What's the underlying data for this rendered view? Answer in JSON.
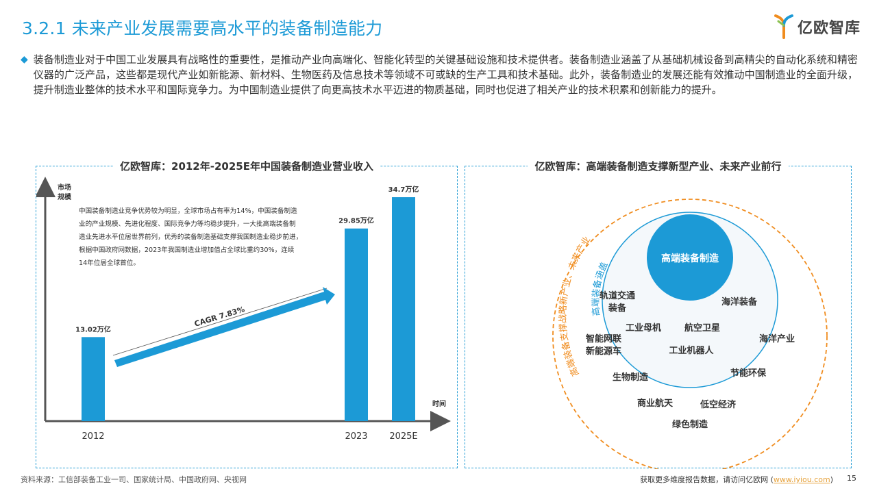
{
  "header": {
    "title": "3.2.1 未来产业发展需要高水平的装备制造能力",
    "logo_text": "亿欧智库"
  },
  "intro": {
    "text": "装备制造业对于中国工业发展具有战略性的重要性，是推动产业向高端化、智能化转型的关键基础设施和技术提供者。装备制造业涵盖了从基础机械设备到高精尖的自动化系统和精密仪器的广泛产品，这些都是现代产业如新能源、新材料、生物医药及信息技术等领域不可或缺的生产工具和技术基础。此外，装备制造业的发展还能有效推动中国制造业的全面升级，提升制造业整体的技术水平和国际竞争力。为中国制造业提供了向更高技术水平迈进的物质基础，同时也促进了相关产业的技术积累和创新能力的提升。"
  },
  "left_panel": {
    "title": "亿欧智库：2012年-2025E年中国装备制造业营业收入",
    "annotation_lines": [
      "中国装备制造业竞争优势较为明显，全球市场占有率为14%，中国装备制造",
      "业的产业规模、先进化程度、国际竞争力等均稳步提升，一大批高端装备制",
      "造业先进水平位居世界前列，优秀的装备制造基础支撑我国制造业稳步前进，",
      "根据中国政府网数据，2023年我国制造业增加值占全球比重约30%，连续",
      "14年位居全球首位。"
    ],
    "cagr_label": "CAGR 7.83%"
  },
  "chart_data": {
    "type": "bar",
    "title": "亿欧智库：2012年-2025E年中国装备制造业营业收入",
    "categories": [
      "2012",
      "2023",
      "2025E"
    ],
    "values": [
      13.02,
      29.85,
      34.7
    ],
    "data_labels": [
      "13.02万亿",
      "29.85万亿",
      "34.7万亿"
    ],
    "ylabel": "市场规模",
    "xlabel": "时间",
    "unit": "万亿",
    "color": "#1c9ad6",
    "grid": false
  },
  "right_panel": {
    "title": "亿欧智库：高端装备制造支撑新型产业、未来产业前行",
    "core_label": "高端装备制造",
    "inner_arc_label": "高端装备涵盖",
    "outer_arc_label": "高端装备支撑战略新产业、未来产业",
    "inner_items": [
      "轨道交通装备",
      "海洋装备",
      "工业母机",
      "航空卫星",
      "工业机器人"
    ],
    "outer_items": [
      "智能网联新能源车",
      "海洋产业",
      "生物制造",
      "节能环保",
      "商业航天",
      "低空经济",
      "绿色制造"
    ],
    "colors": {
      "core": "#1c9ad6",
      "inner_ring": "#1c9ad6",
      "outer_ring": "#f08c1e"
    }
  },
  "footer": {
    "source": "资料来源：工信部装备工业一司、国家统计局、中国政府网、央视网",
    "more_prefix": "获取更多维度报告数据，请访问亿欧网 (",
    "more_link": "www.iyiou.com",
    "more_suffix": ")",
    "page_number": "15"
  }
}
